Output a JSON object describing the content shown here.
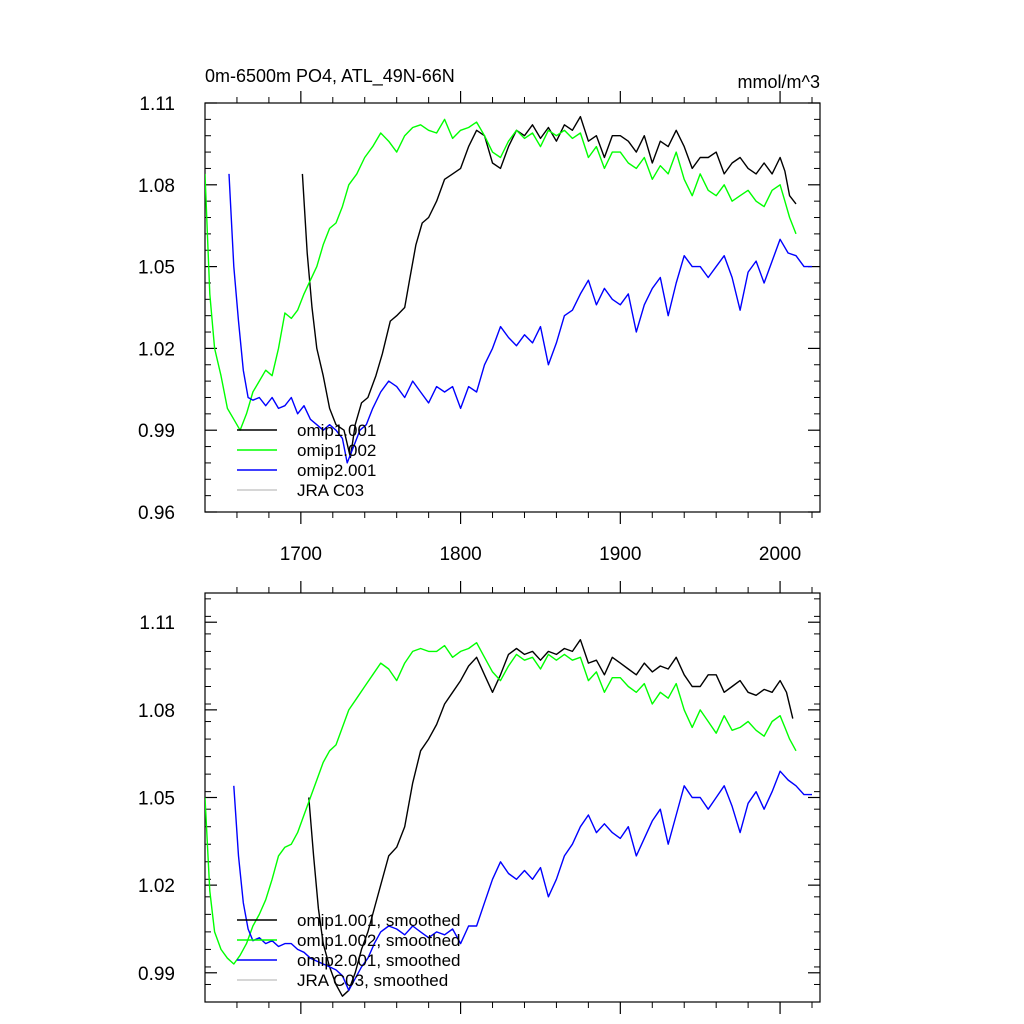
{
  "chart_data": [
    {
      "type": "line",
      "title": "0m-6500m PO4, ATL_49N-66N",
      "units": "mmol/m^3",
      "xlabel": "",
      "ylabel": "",
      "xlim": [
        1640,
        2025
      ],
      "ylim": [
        0.96,
        1.11
      ],
      "xticks": [
        1700,
        1800,
        1900,
        2000
      ],
      "xtick_labels": [
        "1700",
        "1800",
        "1900",
        "2000"
      ],
      "yticks": [
        0.96,
        0.99,
        1.02,
        1.05,
        1.08,
        1.11
      ],
      "ytick_labels": [
        "0.96",
        "0.99",
        "1.02",
        "1.05",
        "1.08",
        "1.11"
      ],
      "legend_position": "bottom-left",
      "series": [
        {
          "name": "omip1.001",
          "color": "#000000",
          "x": [
            1701,
            1704,
            1707,
            1710,
            1714,
            1718,
            1722,
            1727,
            1731,
            1734,
            1738,
            1742,
            1747,
            1751,
            1756,
            1760,
            1765,
            1768,
            1772,
            1776,
            1780,
            1785,
            1790,
            1795,
            1800,
            1805,
            1810,
            1815,
            1820,
            1825,
            1830,
            1835,
            1840,
            1845,
            1850,
            1855,
            1860,
            1865,
            1870,
            1875,
            1880,
            1885,
            1890,
            1895,
            1900,
            1905,
            1910,
            1915,
            1920,
            1925,
            1930,
            1935,
            1940,
            1945,
            1950,
            1955,
            1960,
            1965,
            1970,
            1975,
            1980,
            1985,
            1990,
            1995,
            2000,
            2003,
            2006,
            2010
          ],
          "y": [
            1.084,
            1.055,
            1.035,
            1.02,
            1.01,
            0.998,
            0.992,
            0.99,
            0.98,
            0.992,
            1.0,
            1.002,
            1.01,
            1.018,
            1.03,
            1.032,
            1.035,
            1.045,
            1.058,
            1.066,
            1.068,
            1.074,
            1.082,
            1.084,
            1.086,
            1.094,
            1.1,
            1.098,
            1.088,
            1.086,
            1.094,
            1.1,
            1.098,
            1.102,
            1.097,
            1.101,
            1.096,
            1.102,
            1.1,
            1.105,
            1.096,
            1.098,
            1.09,
            1.098,
            1.098,
            1.096,
            1.092,
            1.098,
            1.088,
            1.096,
            1.094,
            1.1,
            1.094,
            1.086,
            1.09,
            1.09,
            1.092,
            1.084,
            1.088,
            1.09,
            1.086,
            1.084,
            1.088,
            1.084,
            1.09,
            1.085,
            1.076,
            1.073
          ]
        },
        {
          "name": "omip1.002",
          "color": "#00ff00",
          "x": [
            1640,
            1643,
            1646,
            1650,
            1654,
            1658,
            1662,
            1666,
            1670,
            1674,
            1678,
            1682,
            1686,
            1690,
            1694,
            1698,
            1702,
            1706,
            1710,
            1714,
            1718,
            1722,
            1726,
            1730,
            1735,
            1740,
            1745,
            1750,
            1755,
            1760,
            1765,
            1770,
            1775,
            1780,
            1785,
            1790,
            1795,
            1800,
            1805,
            1810,
            1815,
            1820,
            1825,
            1830,
            1835,
            1840,
            1845,
            1850,
            1855,
            1860,
            1865,
            1870,
            1875,
            1880,
            1885,
            1890,
            1895,
            1900,
            1905,
            1910,
            1915,
            1920,
            1925,
            1930,
            1935,
            1940,
            1945,
            1950,
            1955,
            1960,
            1965,
            1970,
            1975,
            1980,
            1985,
            1990,
            1995,
            2000,
            2003,
            2006,
            2010
          ],
          "y": [
            1.084,
            1.04,
            1.02,
            1.01,
            0.998,
            0.994,
            0.99,
            0.996,
            1.004,
            1.008,
            1.012,
            1.01,
            1.02,
            1.033,
            1.031,
            1.034,
            1.04,
            1.045,
            1.05,
            1.058,
            1.064,
            1.066,
            1.072,
            1.08,
            1.084,
            1.09,
            1.094,
            1.099,
            1.096,
            1.092,
            1.098,
            1.101,
            1.102,
            1.1,
            1.099,
            1.104,
            1.097,
            1.1,
            1.101,
            1.103,
            1.098,
            1.092,
            1.09,
            1.096,
            1.1,
            1.097,
            1.099,
            1.094,
            1.1,
            1.098,
            1.1,
            1.097,
            1.099,
            1.09,
            1.094,
            1.086,
            1.092,
            1.092,
            1.088,
            1.086,
            1.09,
            1.082,
            1.087,
            1.084,
            1.092,
            1.082,
            1.076,
            1.084,
            1.078,
            1.076,
            1.08,
            1.074,
            1.076,
            1.078,
            1.074,
            1.072,
            1.078,
            1.08,
            1.074,
            1.068,
            1.062
          ]
        },
        {
          "name": "omip2.001",
          "color": "#0000ff",
          "x": [
            1655,
            1658,
            1661,
            1664,
            1667,
            1670,
            1674,
            1678,
            1682,
            1686,
            1690,
            1694,
            1698,
            1702,
            1706,
            1710,
            1714,
            1718,
            1722,
            1726,
            1729,
            1733,
            1737,
            1741,
            1745,
            1750,
            1755,
            1760,
            1765,
            1770,
            1775,
            1780,
            1785,
            1790,
            1795,
            1800,
            1805,
            1810,
            1815,
            1820,
            1825,
            1830,
            1835,
            1840,
            1845,
            1850,
            1855,
            1860,
            1865,
            1870,
            1875,
            1880,
            1885,
            1890,
            1895,
            1900,
            1905,
            1910,
            1915,
            1920,
            1925,
            1930,
            1935,
            1940,
            1945,
            1950,
            1955,
            1960,
            1965,
            1970,
            1975,
            1980,
            1985,
            1990,
            1995,
            2000,
            2005,
            2010,
            2015,
            2020
          ],
          "y": [
            1.084,
            1.05,
            1.03,
            1.012,
            1.002,
            1.001,
            1.002,
            0.999,
            1.002,
            0.998,
            0.999,
            1.002,
            0.996,
            0.999,
            0.994,
            0.992,
            0.99,
            0.992,
            0.99,
            0.987,
            0.978,
            0.984,
            0.99,
            0.992,
            0.998,
            1.004,
            1.008,
            1.006,
            1.002,
            1.008,
            1.004,
            1.0,
            1.006,
            1.004,
            1.006,
            0.998,
            1.006,
            1.004,
            1.014,
            1.02,
            1.028,
            1.024,
            1.021,
            1.025,
            1.022,
            1.028,
            1.014,
            1.022,
            1.032,
            1.034,
            1.04,
            1.045,
            1.036,
            1.042,
            1.038,
            1.036,
            1.04,
            1.026,
            1.036,
            1.042,
            1.046,
            1.032,
            1.044,
            1.054,
            1.05,
            1.05,
            1.046,
            1.05,
            1.054,
            1.046,
            1.034,
            1.048,
            1.052,
            1.044,
            1.052,
            1.06,
            1.055,
            1.054,
            1.05,
            1.05
          ]
        },
        {
          "name": "JRA C03",
          "color": "#c8c8c8",
          "x": [],
          "y": []
        }
      ]
    },
    {
      "type": "line",
      "title": "",
      "units": "",
      "xlabel": "",
      "ylabel": "",
      "xlim": [
        1640,
        2025
      ],
      "ylim": [
        0.98,
        1.12
      ],
      "xticks": [
        1700,
        1800,
        1900,
        2000
      ],
      "xtick_labels": [
        "",
        "",
        "",
        ""
      ],
      "yticks": [
        0.99,
        1.02,
        1.05,
        1.08,
        1.11
      ],
      "ytick_labels": [
        "0.99",
        "1.02",
        "1.05",
        "1.08",
        "1.11"
      ],
      "legend_position": "bottom-left",
      "series": [
        {
          "name": "omip1.001, smoothed",
          "color": "#000000",
          "x": [
            1705,
            1708,
            1711,
            1714,
            1718,
            1722,
            1726,
            1730,
            1734,
            1738,
            1742,
            1746,
            1750,
            1755,
            1760,
            1765,
            1770,
            1775,
            1780,
            1785,
            1790,
            1795,
            1800,
            1805,
            1810,
            1815,
            1820,
            1825,
            1830,
            1835,
            1840,
            1845,
            1850,
            1855,
            1860,
            1865,
            1870,
            1875,
            1880,
            1885,
            1890,
            1895,
            1900,
            1905,
            1910,
            1915,
            1920,
            1925,
            1930,
            1935,
            1940,
            1945,
            1950,
            1955,
            1960,
            1965,
            1970,
            1975,
            1980,
            1985,
            1990,
            1995,
            2000,
            2004,
            2008
          ],
          "y": [
            1.05,
            1.03,
            1.012,
            1.0,
            0.992,
            0.986,
            0.982,
            0.984,
            0.99,
            0.998,
            1.004,
            1.012,
            1.02,
            1.03,
            1.033,
            1.04,
            1.055,
            1.066,
            1.07,
            1.075,
            1.082,
            1.086,
            1.09,
            1.095,
            1.098,
            1.092,
            1.086,
            1.092,
            1.099,
            1.101,
            1.099,
            1.1,
            1.097,
            1.1,
            1.099,
            1.101,
            1.1,
            1.104,
            1.096,
            1.097,
            1.092,
            1.098,
            1.096,
            1.094,
            1.092,
            1.096,
            1.093,
            1.095,
            1.094,
            1.098,
            1.092,
            1.088,
            1.088,
            1.092,
            1.092,
            1.086,
            1.088,
            1.09,
            1.086,
            1.085,
            1.087,
            1.086,
            1.09,
            1.086,
            1.077
          ]
        },
        {
          "name": "omip1.002, smoothed",
          "color": "#00ff00",
          "x": [
            1640,
            1643,
            1646,
            1650,
            1654,
            1658,
            1662,
            1666,
            1670,
            1674,
            1678,
            1682,
            1686,
            1690,
            1694,
            1698,
            1702,
            1706,
            1710,
            1714,
            1718,
            1722,
            1726,
            1730,
            1735,
            1740,
            1745,
            1750,
            1755,
            1760,
            1765,
            1770,
            1775,
            1780,
            1785,
            1790,
            1795,
            1800,
            1805,
            1810,
            1815,
            1820,
            1825,
            1830,
            1835,
            1840,
            1845,
            1850,
            1855,
            1860,
            1865,
            1870,
            1875,
            1880,
            1885,
            1890,
            1895,
            1900,
            1905,
            1910,
            1915,
            1920,
            1925,
            1930,
            1935,
            1940,
            1945,
            1950,
            1955,
            1960,
            1965,
            1970,
            1975,
            1980,
            1985,
            1990,
            1995,
            2000,
            2003,
            2006,
            2010
          ],
          "y": [
            1.05,
            1.018,
            1.004,
            0.998,
            0.995,
            0.993,
            0.996,
            1.0,
            1.006,
            1.01,
            1.015,
            1.022,
            1.03,
            1.033,
            1.034,
            1.038,
            1.044,
            1.05,
            1.056,
            1.062,
            1.066,
            1.068,
            1.074,
            1.08,
            1.084,
            1.088,
            1.092,
            1.096,
            1.094,
            1.09,
            1.096,
            1.1,
            1.101,
            1.1,
            1.1,
            1.102,
            1.098,
            1.1,
            1.101,
            1.103,
            1.098,
            1.093,
            1.09,
            1.095,
            1.099,
            1.097,
            1.098,
            1.094,
            1.099,
            1.097,
            1.099,
            1.097,
            1.098,
            1.09,
            1.093,
            1.086,
            1.091,
            1.091,
            1.088,
            1.086,
            1.089,
            1.082,
            1.086,
            1.084,
            1.089,
            1.08,
            1.074,
            1.08,
            1.076,
            1.072,
            1.078,
            1.073,
            1.074,
            1.076,
            1.073,
            1.071,
            1.076,
            1.078,
            1.074,
            1.07,
            1.066
          ]
        },
        {
          "name": "omip2.001, smoothed",
          "color": "#0000ff",
          "x": [
            1658,
            1661,
            1664,
            1667,
            1670,
            1674,
            1678,
            1682,
            1686,
            1690,
            1694,
            1698,
            1702,
            1706,
            1710,
            1714,
            1718,
            1722,
            1726,
            1730,
            1734,
            1738,
            1742,
            1746,
            1750,
            1755,
            1760,
            1765,
            1770,
            1775,
            1780,
            1785,
            1790,
            1795,
            1800,
            1805,
            1810,
            1815,
            1820,
            1825,
            1830,
            1835,
            1840,
            1845,
            1850,
            1855,
            1860,
            1865,
            1870,
            1875,
            1880,
            1885,
            1890,
            1895,
            1900,
            1905,
            1910,
            1915,
            1920,
            1925,
            1930,
            1935,
            1940,
            1945,
            1950,
            1955,
            1960,
            1965,
            1970,
            1975,
            1980,
            1985,
            1990,
            1995,
            2000,
            2005,
            2010,
            2015,
            2020
          ],
          "y": [
            1.054,
            1.03,
            1.014,
            1.005,
            1.001,
            1.002,
            1.0,
            1.001,
            0.999,
            1.0,
            1.0,
            0.998,
            0.997,
            0.995,
            0.994,
            0.993,
            0.992,
            0.991,
            0.989,
            0.984,
            0.988,
            0.992,
            0.995,
            1.0,
            1.004,
            1.006,
            1.005,
            1.003,
            1.006,
            1.004,
            1.002,
            1.004,
            1.003,
            1.005,
            1.0,
            1.006,
            1.006,
            1.014,
            1.022,
            1.028,
            1.024,
            1.022,
            1.025,
            1.022,
            1.026,
            1.016,
            1.022,
            1.03,
            1.034,
            1.04,
            1.044,
            1.038,
            1.041,
            1.038,
            1.036,
            1.04,
            1.03,
            1.036,
            1.042,
            1.046,
            1.034,
            1.044,
            1.054,
            1.05,
            1.05,
            1.046,
            1.05,
            1.054,
            1.047,
            1.038,
            1.048,
            1.052,
            1.046,
            1.052,
            1.059,
            1.056,
            1.054,
            1.051,
            1.051
          ]
        },
        {
          "name": "JRA C03, smoothed",
          "color": "#c8c8c8",
          "x": [],
          "y": []
        }
      ]
    }
  ]
}
